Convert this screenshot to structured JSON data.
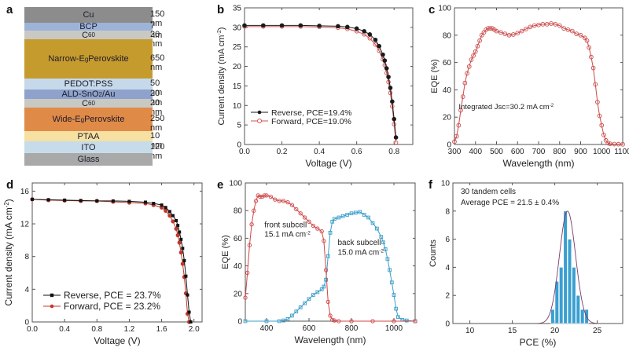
{
  "panel_labels": [
    "a",
    "b",
    "c",
    "d",
    "e",
    "f"
  ],
  "colors": {
    "reverse_b": "#1a1a1a",
    "forward_b": "#d05050",
    "eqe_c": "#cc4a4a",
    "reverse_d": "#111111",
    "forward_d": "#c0392b",
    "front_subcell": "#d04545",
    "back_subcell": "#3b9cc8",
    "hist_bar": "#3a9fd0",
    "fit_curve": "#7a3a6a"
  },
  "device_stack": {
    "layers": [
      {
        "name": "Cu",
        "thickness": "150 nm",
        "color": "#8c8c8c"
      },
      {
        "name": "BCP",
        "thickness": "7 nm",
        "color": "#9db4d8"
      },
      {
        "name": "C60",
        "thickness": "20 nm",
        "color": "#c9c9c4"
      },
      {
        "name": "Narrow-Eg Perovskite",
        "thickness": "650 nm",
        "color": "#c69b2e"
      },
      {
        "name": "PEDOT:PSS",
        "thickness": "50 nm",
        "color": "#c5d9ea"
      },
      {
        "name": "ALD-SnO2/Au",
        "thickness": "20 nm",
        "color": "#8ea2cb"
      },
      {
        "name": "C60",
        "thickness": "20 nm",
        "color": "#c9c9c4"
      },
      {
        "name": "Wide-Eg Perovskite",
        "thickness": "250 nm",
        "color": "#e08a48"
      },
      {
        "name": "PTAA",
        "thickness": "10 nm",
        "color": "#f6e1a2"
      },
      {
        "name": "ITO",
        "thickness": "120 nm",
        "color": "#c7dcea"
      },
      {
        "name": "Glass",
        "thickness": "",
        "color": "#a9a9a9"
      }
    ]
  },
  "chart_data": [
    {
      "id": "b",
      "type": "line",
      "xlabel": "Voltage (V)",
      "ylabel": "Current density (mA cm-2)",
      "xlim": [
        0,
        0.9
      ],
      "ylim": [
        0,
        35
      ],
      "xticks": [
        0.0,
        0.2,
        0.4,
        0.6,
        0.8
      ],
      "yticks": [
        0,
        5,
        10,
        15,
        20,
        25,
        30,
        35
      ],
      "legend": "center-left",
      "series": [
        {
          "name": "Reverse, PCE=19.4%",
          "marker": "filled-circle",
          "x": [
            0,
            0.1,
            0.2,
            0.3,
            0.4,
            0.5,
            0.55,
            0.6,
            0.64,
            0.67,
            0.7,
            0.72,
            0.74,
            0.75,
            0.76,
            0.77,
            0.78,
            0.79,
            0.8,
            0.81
          ],
          "y": [
            30.5,
            30.5,
            30.5,
            30.5,
            30.4,
            30.3,
            30.1,
            29.7,
            29.0,
            28.2,
            26.8,
            25.2,
            23.0,
            21.5,
            19.5,
            17.3,
            14.5,
            11.0,
            6.5,
            1.8
          ]
        },
        {
          "name": "Forward, PCE=19.0%",
          "marker": "open-circle",
          "x": [
            0,
            0.1,
            0.2,
            0.3,
            0.4,
            0.5,
            0.55,
            0.6,
            0.64,
            0.67,
            0.7,
            0.72,
            0.74,
            0.75,
            0.76,
            0.77,
            0.78,
            0.79,
            0.8,
            0.81
          ],
          "y": [
            30.2,
            30.2,
            30.2,
            30.2,
            30.1,
            29.9,
            29.6,
            29.0,
            28.2,
            27.2,
            25.6,
            24.0,
            21.8,
            20.3,
            18.3,
            16.0,
            13.2,
            9.8,
            5.2,
            0.5
          ]
        }
      ]
    },
    {
      "id": "c",
      "type": "line",
      "xlabel": "Wavelength (nm)",
      "ylabel": "EQE (%)",
      "xlim": [
        300,
        1100
      ],
      "ylim": [
        0,
        100
      ],
      "xticks": [
        300,
        400,
        500,
        600,
        700,
        800,
        900,
        1000,
        1100
      ],
      "yticks": [
        0,
        20,
        40,
        60,
        80,
        100
      ],
      "annotation": "Integrated Jsc=30.2 mA cm-2",
      "series": [
        {
          "name": "EQE",
          "marker": "open-circle",
          "x": [
            300,
            310,
            320,
            330,
            340,
            350,
            360,
            370,
            380,
            390,
            400,
            410,
            420,
            430,
            440,
            450,
            460,
            470,
            480,
            490,
            500,
            520,
            540,
            560,
            580,
            600,
            620,
            640,
            660,
            680,
            700,
            720,
            740,
            760,
            780,
            800,
            820,
            840,
            860,
            880,
            900,
            920,
            930,
            940,
            950,
            960,
            970,
            980,
            990,
            1000,
            1010,
            1020,
            1030,
            1040,
            1060,
            1080,
            1100
          ],
          "y": [
            2,
            6,
            14,
            25,
            35,
            45,
            52,
            57,
            62,
            65,
            68,
            72,
            76,
            80,
            82,
            84,
            85,
            85,
            85,
            84,
            83,
            82,
            81,
            80,
            80.5,
            81.5,
            83,
            84.5,
            86,
            87,
            87.5,
            88,
            88,
            88.5,
            88,
            87,
            85,
            84,
            83,
            81,
            80,
            78,
            76,
            71,
            64,
            56,
            44,
            31,
            21,
            14,
            7,
            3,
            1,
            0.5,
            0.3,
            0.2,
            0.1
          ]
        }
      ]
    },
    {
      "id": "d",
      "type": "line",
      "xlabel": "Voltage (V)",
      "ylabel": "Current density (mA cm-2)",
      "xlim": [
        0,
        2.1
      ],
      "ylim": [
        0,
        17
      ],
      "xticks": [
        0.0,
        0.4,
        0.8,
        1.2,
        1.6,
        2.0
      ],
      "yticks": [
        0,
        4,
        8,
        12,
        16
      ],
      "legend": "bottom-left",
      "series": [
        {
          "name": "Reverse, PCE = 23.7%",
          "marker": "filled-square",
          "x": [
            0,
            0.2,
            0.4,
            0.6,
            0.8,
            1.0,
            1.2,
            1.4,
            1.5,
            1.6,
            1.65,
            1.7,
            1.74,
            1.78,
            1.8,
            1.82,
            1.84,
            1.86,
            1.88,
            1.9,
            1.92,
            1.94,
            1.96
          ],
          "y": [
            15.0,
            14.95,
            14.9,
            14.85,
            14.8,
            14.8,
            14.75,
            14.65,
            14.5,
            14.3,
            14.0,
            13.5,
            13.0,
            12.4,
            11.8,
            11.0,
            10.1,
            9.0,
            7.5,
            5.6,
            3.3,
            1.2,
            0.0
          ]
        },
        {
          "name": "Forward, PCE = 23.2%",
          "marker": "filled-circle",
          "x": [
            0,
            0.2,
            0.4,
            0.6,
            0.8,
            1.0,
            1.2,
            1.4,
            1.5,
            1.6,
            1.65,
            1.7,
            1.74,
            1.78,
            1.8,
            1.82,
            1.84,
            1.86,
            1.88,
            1.9,
            1.92,
            1.94
          ],
          "y": [
            15.0,
            14.9,
            14.85,
            14.8,
            14.8,
            14.7,
            14.6,
            14.5,
            14.3,
            14.0,
            13.6,
            13.0,
            12.3,
            11.4,
            10.6,
            9.7,
            8.5,
            7.1,
            5.5,
            3.5,
            1.0,
            0.0
          ]
        }
      ]
    },
    {
      "id": "e",
      "type": "line",
      "xlabel": "Wavelength (nm)",
      "ylabel": "EQE (%)",
      "xlim": [
        300,
        1100
      ],
      "ylim": [
        0,
        100
      ],
      "xticks": [
        400,
        600,
        800,
        1000
      ],
      "yticks": [
        0,
        20,
        40,
        60,
        80,
        100
      ],
      "series": [
        {
          "name": "front subcell",
          "label": "front subcell\n15.1 mA cm-2",
          "marker": "open-circle",
          "x": [
            300,
            310,
            320,
            330,
            340,
            350,
            360,
            370,
            380,
            390,
            400,
            420,
            440,
            460,
            480,
            500,
            520,
            540,
            560,
            580,
            600,
            620,
            640,
            660,
            670,
            680,
            690,
            700,
            710,
            720,
            740,
            800,
            900,
            1000,
            1100
          ],
          "y": [
            17,
            35,
            55,
            70,
            80,
            87,
            91,
            90,
            90,
            91,
            91,
            90,
            88,
            87,
            87,
            86,
            84,
            81,
            78,
            75,
            72,
            69,
            67,
            65,
            58,
            37,
            14,
            4,
            1,
            0.5,
            0,
            0,
            0,
            0,
            0
          ]
        },
        {
          "name": "back subcell",
          "label": "back subcell\n15.0 mA cm-2",
          "marker": "open-square",
          "x": [
            300,
            400,
            460,
            480,
            500,
            520,
            540,
            560,
            580,
            600,
            620,
            640,
            660,
            670,
            680,
            690,
            700,
            710,
            720,
            740,
            760,
            780,
            800,
            820,
            840,
            860,
            880,
            900,
            920,
            940,
            950,
            960,
            970,
            980,
            990,
            1000,
            1010,
            1020,
            1040,
            1060,
            1100
          ],
          "y": [
            0,
            0,
            0,
            0.5,
            1.5,
            4,
            7,
            10,
            13,
            16,
            19,
            21,
            23,
            25,
            30,
            47,
            64,
            72,
            74,
            75,
            76,
            77,
            78,
            78.5,
            79,
            77,
            75,
            71,
            67,
            61,
            57,
            52,
            45,
            37,
            28,
            19,
            9,
            3,
            1,
            0.5,
            0
          ]
        }
      ]
    },
    {
      "id": "f",
      "type": "bar",
      "xlabel": "PCE (%)",
      "ylabel": "Counts",
      "xlim": [
        8,
        28
      ],
      "ylim": [
        0,
        10
      ],
      "xticks": [
        10,
        15,
        20,
        25
      ],
      "yticks": [
        0,
        2,
        4,
        6,
        8,
        10
      ],
      "annotation": [
        "30  tandem cells",
        "Average PCE = 21.5 ± 0.4%"
      ],
      "bin_centers": [
        19.75,
        20.25,
        20.75,
        21.25,
        21.75,
        22.25,
        22.75,
        23.25,
        23.75
      ],
      "values": [
        1,
        3,
        4,
        8,
        6,
        4,
        2,
        1,
        1
      ],
      "fit": {
        "type": "gaussian",
        "mean": 21.5,
        "sigma": 0.95,
        "peak": 8
      }
    }
  ]
}
